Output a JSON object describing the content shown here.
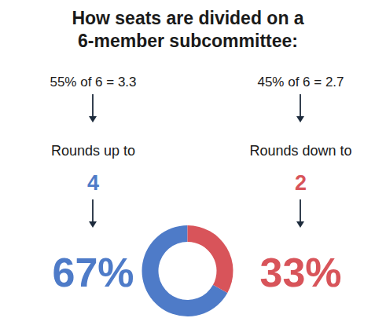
{
  "chart_data": {
    "type": "donut",
    "title": "How seats are divided on a 6-member subcommittee:",
    "values": [
      67,
      33
    ],
    "value_labels": [
      "67%",
      "33%"
    ],
    "colors": [
      "#4e7bc8",
      "#d8545a"
    ],
    "data_labels": true,
    "annotations": [
      {
        "text": "55% of 6 = 3.3",
        "rounding": "Rounds up to",
        "seats": 4
      },
      {
        "text": "45% of 6 = 2.7",
        "rounding": "Rounds down to",
        "seats": 2
      }
    ]
  }
}
